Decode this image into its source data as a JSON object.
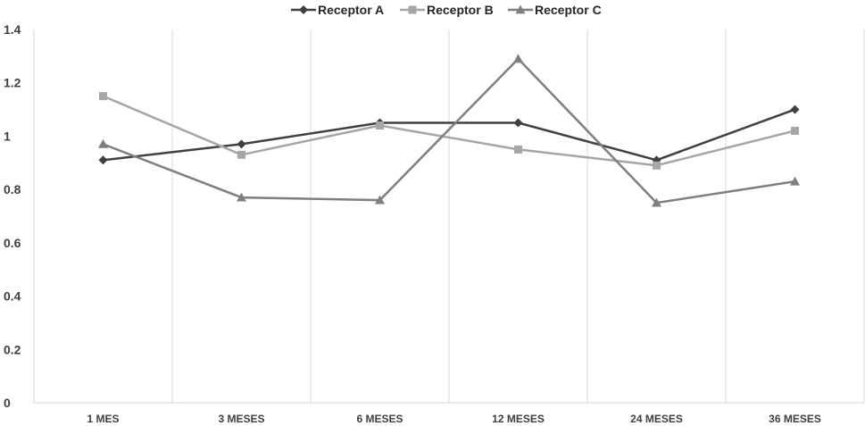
{
  "chart_data": {
    "type": "line",
    "title": "",
    "xlabel": "",
    "ylabel": "",
    "categories": [
      "1 MES",
      "3 MESES",
      "6 MESES",
      "12 MESES",
      "24 MESES",
      "36 MESES"
    ],
    "ylim": [
      0,
      1.4
    ],
    "yticks": [
      "0",
      "0.2",
      "0.4",
      "0.6",
      "0.8",
      "1",
      "1.2",
      "1.4"
    ],
    "grid": "vertical",
    "legend_position": "top-center",
    "series": [
      {
        "name": "Receptor A",
        "marker": "diamond",
        "color": "#404040",
        "values": [
          0.91,
          0.97,
          1.05,
          1.05,
          0.91,
          1.1
        ]
      },
      {
        "name": "Receptor B",
        "marker": "square",
        "color": "#a6a6a6",
        "values": [
          1.15,
          0.93,
          1.04,
          0.95,
          0.89,
          1.02
        ]
      },
      {
        "name": "Receptor C",
        "marker": "triangle",
        "color": "#7f7f7f",
        "values": [
          0.97,
          0.77,
          0.76,
          1.29,
          0.75,
          0.83
        ]
      }
    ]
  }
}
